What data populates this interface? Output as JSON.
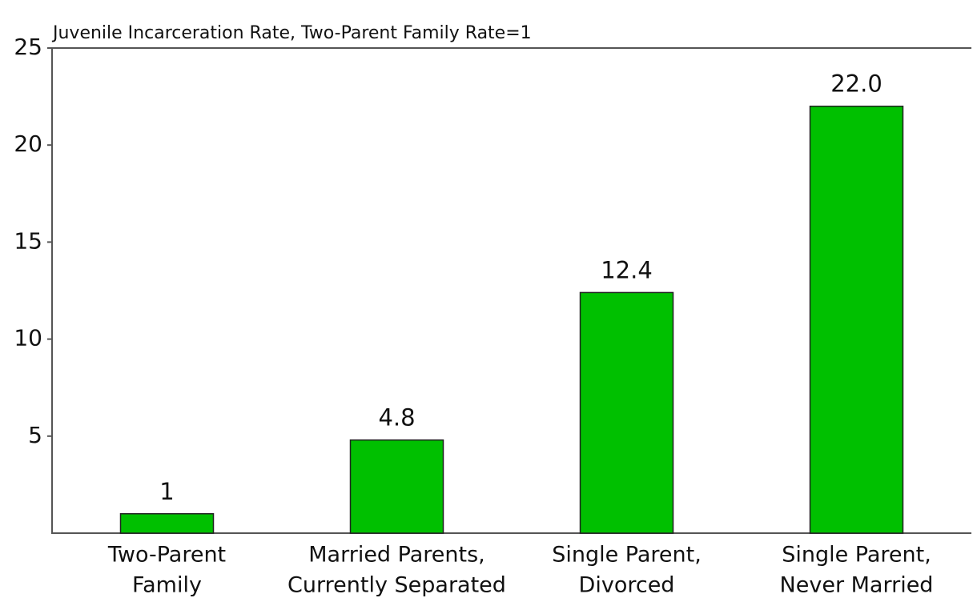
{
  "chart_data": {
    "type": "bar",
    "y_label": "Juvenile Incarceration Rate, Two-Parent Family Rate=1",
    "categories": [
      [
        "Two-Parent",
        "Family"
      ],
      [
        "Married Parents,",
        "Currently Separated"
      ],
      [
        "Single Parent,",
        "Divorced"
      ],
      [
        "Single Parent,",
        "Never Married"
      ]
    ],
    "values": [
      1,
      4.8,
      12.4,
      22
    ],
    "value_labels": [
      "1",
      "4.8",
      "12.4",
      "22.0"
    ],
    "color": "#00c000",
    "ylim": [
      0,
      25
    ],
    "yticks": [
      5,
      10,
      15,
      20,
      25
    ],
    "grid": false
  }
}
